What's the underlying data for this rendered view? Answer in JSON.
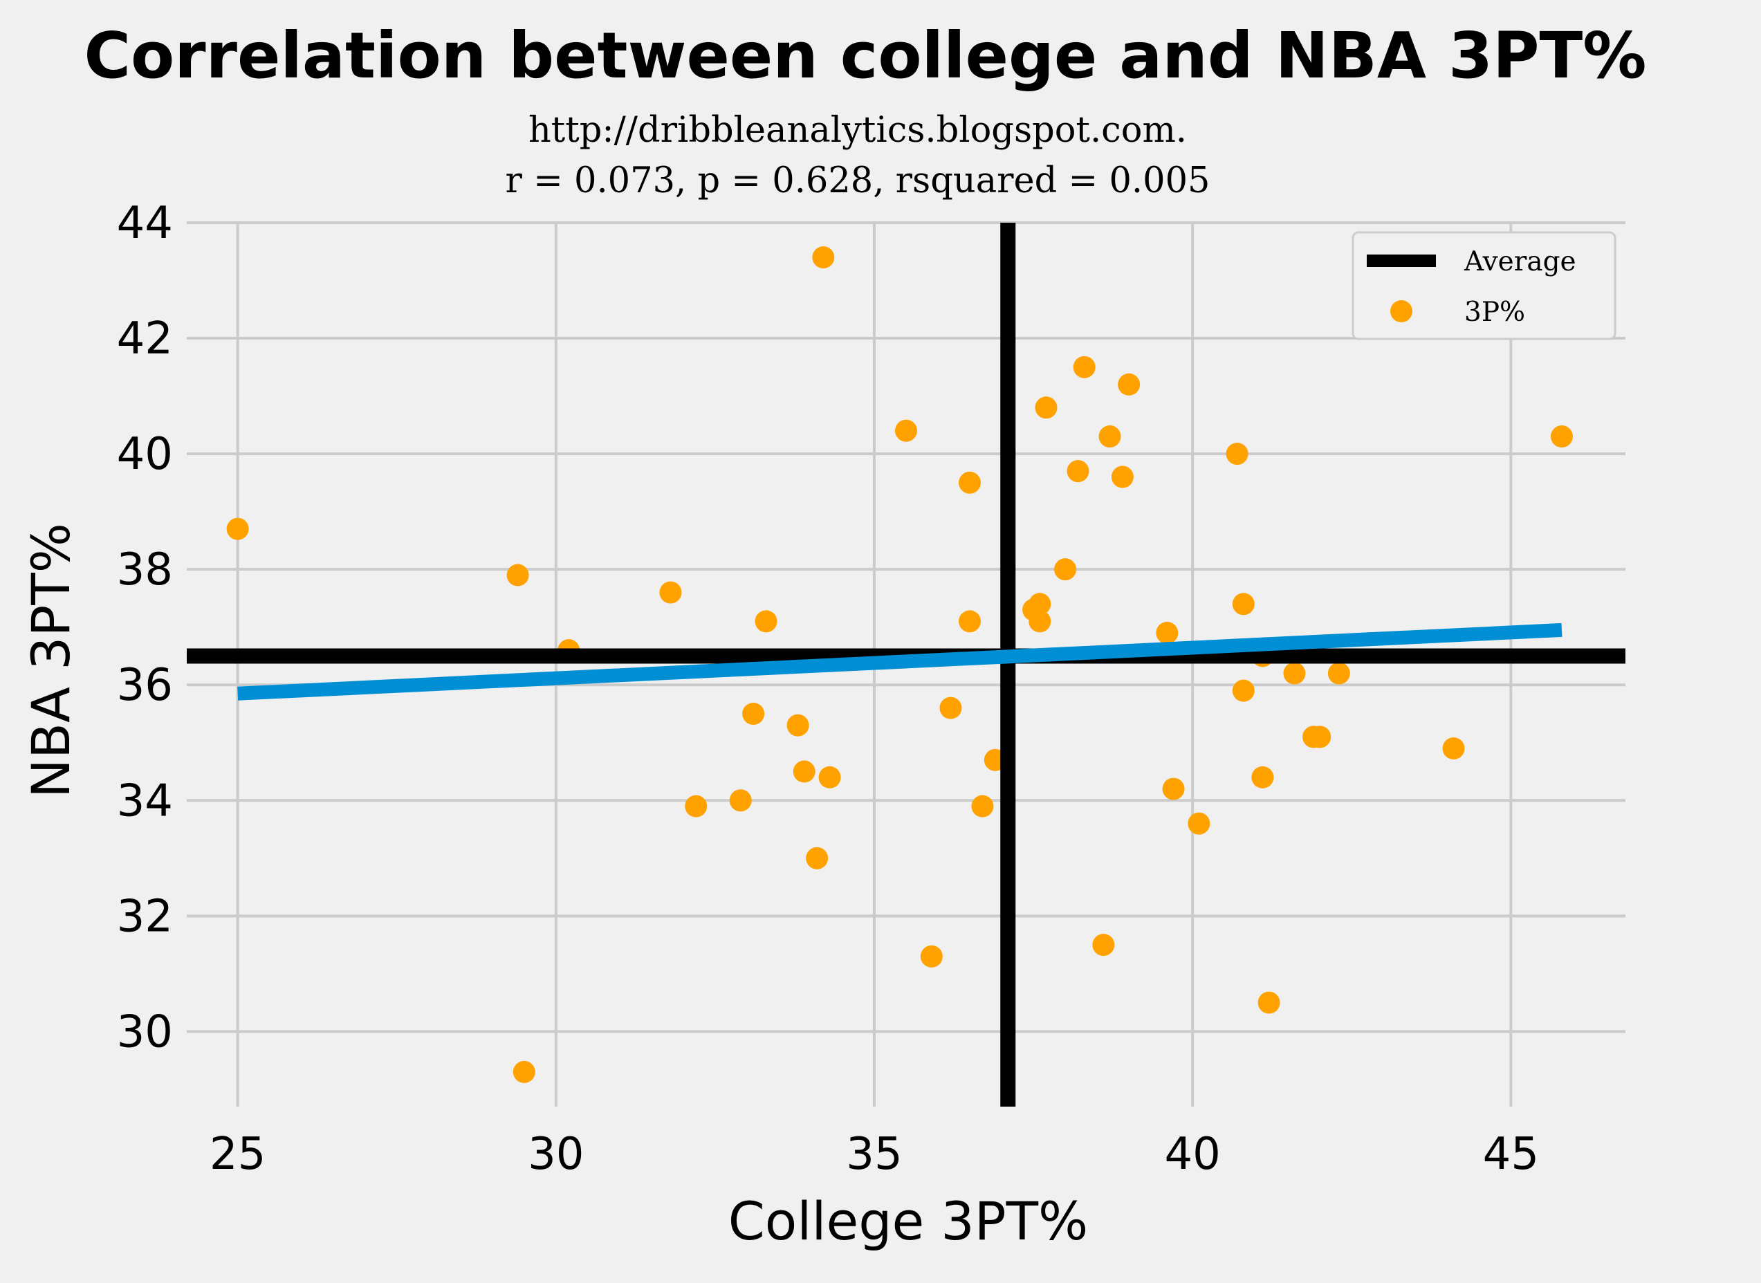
{
  "chart_data": {
    "type": "scatter",
    "title": "Correlation between college and NBA 3PT%",
    "subtitle_lines": [
      "http://dribbleanalytics.blogspot.com.",
      "r = 0.073, p = 0.628, rsquared = 0.005"
    ],
    "xlabel": "College 3PT%",
    "ylabel": "NBA 3PT%",
    "xlim": [
      24.2,
      46.8
    ],
    "ylim": [
      28.7,
      44.0
    ],
    "xticks": [
      "25",
      "30",
      "35",
      "40",
      "45"
    ],
    "yticks": [
      "30",
      "32",
      "34",
      "36",
      "38",
      "40",
      "42",
      "44"
    ],
    "grid": true,
    "legend": {
      "placement": "upper-right",
      "entries": [
        "Average",
        "3P%"
      ]
    },
    "colors": {
      "points": "#ffa200",
      "average": "#000000",
      "fit": "#008fd5",
      "background": "#f0f0f0",
      "grid": "#cbcbcb"
    },
    "average": {
      "x": 37.1,
      "y": 36.5
    },
    "fit": {
      "x1": 25.0,
      "y1": 35.85,
      "x2": 45.8,
      "y2": 36.95
    },
    "series": [
      {
        "name": "3P%",
        "points": [
          [
            25.0,
            38.7
          ],
          [
            29.4,
            37.9
          ],
          [
            29.5,
            29.3
          ],
          [
            30.2,
            36.6
          ],
          [
            31.8,
            37.6
          ],
          [
            32.2,
            33.9
          ],
          [
            32.9,
            34.0
          ],
          [
            33.1,
            35.5
          ],
          [
            33.3,
            37.1
          ],
          [
            33.8,
            35.3
          ],
          [
            33.9,
            34.5
          ],
          [
            34.1,
            33.0
          ],
          [
            34.2,
            43.4
          ],
          [
            34.3,
            34.4
          ],
          [
            35.5,
            40.4
          ],
          [
            35.9,
            31.3
          ],
          [
            36.2,
            35.6
          ],
          [
            36.5,
            39.5
          ],
          [
            36.5,
            37.1
          ],
          [
            36.7,
            33.9
          ],
          [
            36.9,
            34.7
          ],
          [
            37.5,
            37.3
          ],
          [
            37.6,
            37.4
          ],
          [
            37.6,
            37.1
          ],
          [
            37.7,
            40.8
          ],
          [
            38.0,
            38.0
          ],
          [
            38.2,
            39.7
          ],
          [
            38.3,
            41.5
          ],
          [
            38.6,
            31.5
          ],
          [
            38.7,
            40.3
          ],
          [
            38.9,
            39.6
          ],
          [
            39.0,
            41.2
          ],
          [
            39.6,
            36.9
          ],
          [
            39.7,
            34.2
          ],
          [
            40.1,
            33.6
          ],
          [
            40.7,
            40.0
          ],
          [
            40.8,
            37.4
          ],
          [
            40.8,
            35.9
          ],
          [
            41.1,
            36.5
          ],
          [
            41.1,
            34.4
          ],
          [
            41.2,
            30.5
          ],
          [
            41.6,
            36.2
          ],
          [
            41.9,
            35.1
          ],
          [
            42.0,
            35.1
          ],
          [
            42.3,
            36.2
          ],
          [
            44.1,
            34.9
          ],
          [
            45.8,
            40.3
          ]
        ]
      }
    ]
  }
}
